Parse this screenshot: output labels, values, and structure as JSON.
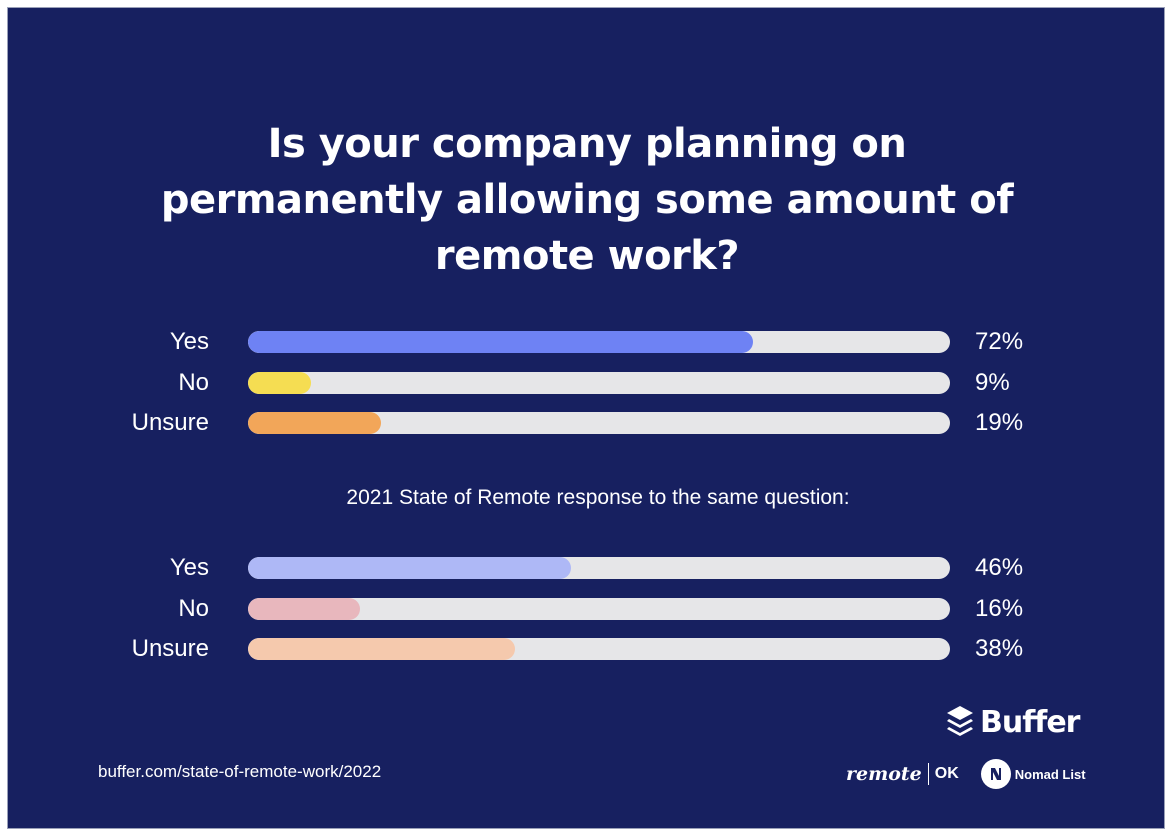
{
  "title_lines": [
    "Is your company planning on",
    "permanently allowing some amount of",
    "remote work?"
  ],
  "subheading": "2021 State of Remote response to the same question:",
  "source_url": "buffer.com/state-of-remote-work/2022",
  "logos": {
    "buffer": "Buffer",
    "remote": "remote",
    "ok": "OK",
    "nomad": "Nomad List"
  },
  "colors": {
    "background": "#172060",
    "track": "#e6e6e8",
    "yes_2022": "#6e82f4",
    "no_2022": "#f5dd52",
    "unsure_2022": "#f2a659",
    "yes_2021": "#aeb8f6",
    "no_2021": "#e8b7bd",
    "unsure_2021": "#f5c9ad"
  },
  "chart_data": [
    {
      "type": "bar",
      "orientation": "horizontal",
      "categories": [
        "Yes",
        "No",
        "Unsure"
      ],
      "values": [
        72,
        9,
        19
      ],
      "value_labels": [
        "72%",
        "9%",
        "19%"
      ],
      "colors": [
        "#6e82f4",
        "#f5dd52",
        "#f2a659"
      ],
      "xlim": [
        0,
        100
      ]
    },
    {
      "type": "bar",
      "orientation": "horizontal",
      "title": "2021 State of Remote response to the same question:",
      "categories": [
        "Yes",
        "No",
        "Unsure"
      ],
      "values": [
        46,
        16,
        38
      ],
      "value_labels": [
        "46%",
        "16%",
        "38%"
      ],
      "colors": [
        "#aeb8f6",
        "#e8b7bd",
        "#f5c9ad"
      ],
      "xlim": [
        0,
        100
      ]
    }
  ]
}
